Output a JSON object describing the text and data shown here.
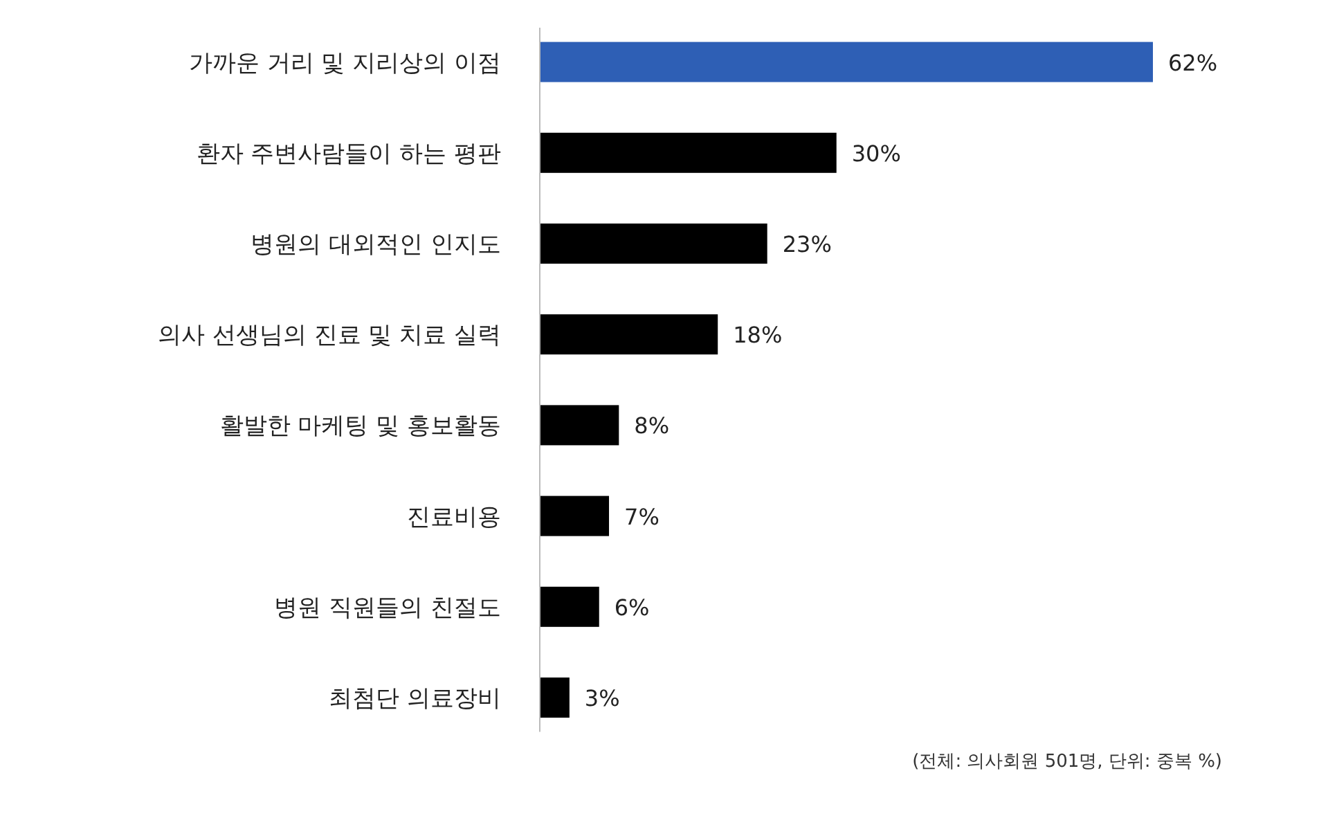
{
  "chart_data": {
    "type": "bar",
    "orientation": "horizontal",
    "tick_labels": "y",
    "categories": [
      "가까운 거리 및 지리상의 이점",
      "환자 주변사람들이 하는 평판",
      "병원의 대외적인 인지도",
      "의사 선생님의 진료 및 치료 실력",
      "활발한 마케팅 및 홍보활동",
      "진료비용",
      "병원 직원들의 친절도",
      "최첨단 의료장비"
    ],
    "values": [
      62,
      30,
      23,
      18,
      8,
      7,
      6,
      3
    ],
    "colors": [
      "#2e5fb5",
      "#000000",
      "#000000",
      "#000000",
      "#000000",
      "#000000",
      "#000000",
      "#000000"
    ],
    "value_labels": [
      "62%",
      "30%",
      "23%",
      "18%",
      "8%",
      "7%",
      "6%",
      "3%"
    ],
    "annotations": [
      "(전체: 의사회원 501명, 단위: 중복 %)"
    ]
  }
}
